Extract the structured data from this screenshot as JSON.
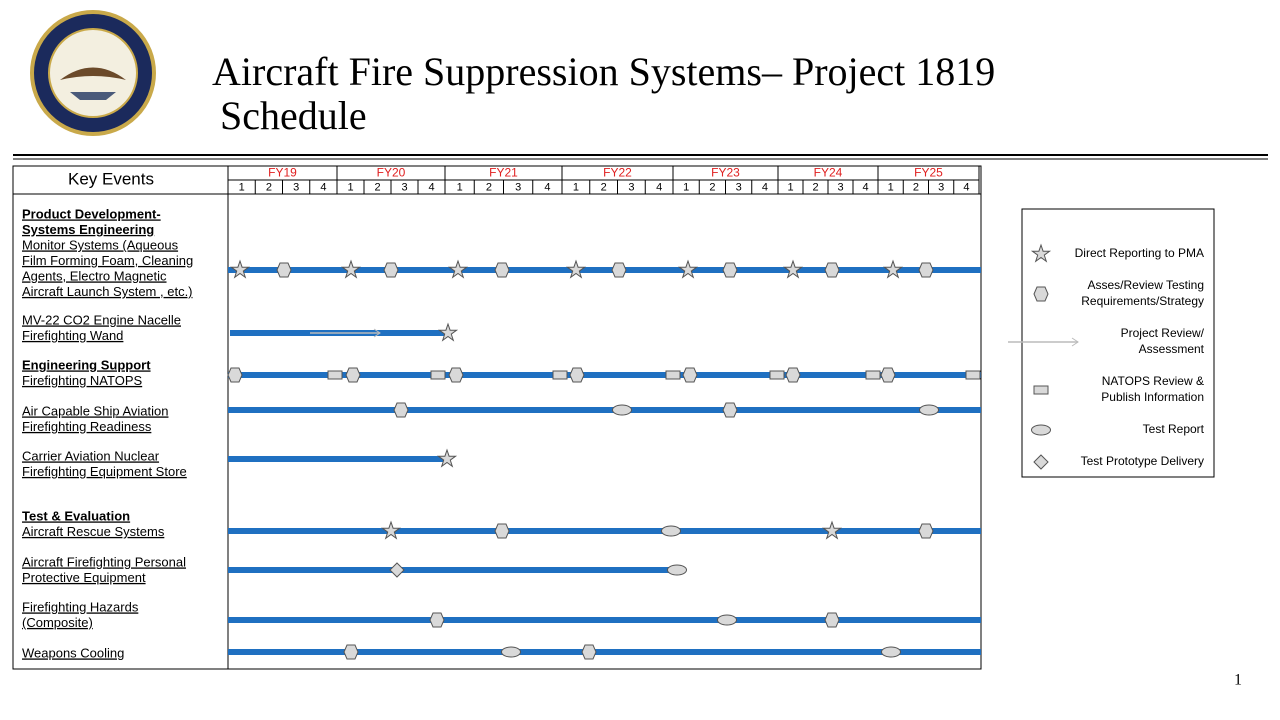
{
  "header": {
    "title_lines": [
      "Aircraft Fire Suppression Systems– Project 1819",
      "Schedule"
    ]
  },
  "table": {
    "key_events": "Key Events",
    "fiscal_years": [
      "FY19",
      "FY20",
      "FY21",
      "FY22",
      "FY23",
      "FY24",
      "FY25"
    ],
    "quarters": [
      "1",
      "2",
      "3",
      "4"
    ],
    "rows": [
      {
        "heading_lines": [
          "Product Development-",
          "Systems Engineering"
        ],
        "lines": [
          "Monitor Systems (Aqueous",
          "Film Forming Foam, Cleaning",
          "Agents, Electro Magnetic",
          "Aircraft Launch System , etc.)"
        ]
      },
      {
        "lines": [
          "MV-22 CO2 Engine Nacelle",
          "Firefighting Wand"
        ]
      },
      {
        "heading_lines": [
          "Engineering Support"
        ],
        "lines": [
          "Firefighting NATOPS"
        ]
      },
      {
        "lines": [
          "Air Capable Ship Aviation",
          "Firefighting Readiness"
        ]
      },
      {
        "lines": [
          "Carrier Aviation Nuclear",
          "Firefighting Equipment Store"
        ]
      },
      {
        "heading_lines": [
          "Test & Evaluation"
        ],
        "lines": [
          "Aircraft Rescue Systems"
        ]
      },
      {
        "lines": [
          "Aircraft Firefighting Personal",
          "Protective Equipment"
        ]
      },
      {
        "lines": [
          "Firefighting Hazards",
          "(Composite)"
        ]
      },
      {
        "lines": [
          "Weapons Cooling"
        ]
      }
    ]
  },
  "legend": [
    {
      "lines": [
        "Direct Reporting  to PMA"
      ]
    },
    {
      "lines": [
        "Asses/Review Testing",
        "Requirements/Strategy"
      ]
    },
    {
      "lines": [
        "Project Review/",
        "Assessment"
      ]
    },
    {
      "lines": [
        "NATOPS Review  &",
        "Publish Information"
      ]
    },
    {
      "lines": [
        "Test Report"
      ]
    },
    {
      "lines": [
        "Test Prototype Delivery"
      ]
    }
  ],
  "page_number": "1"
}
